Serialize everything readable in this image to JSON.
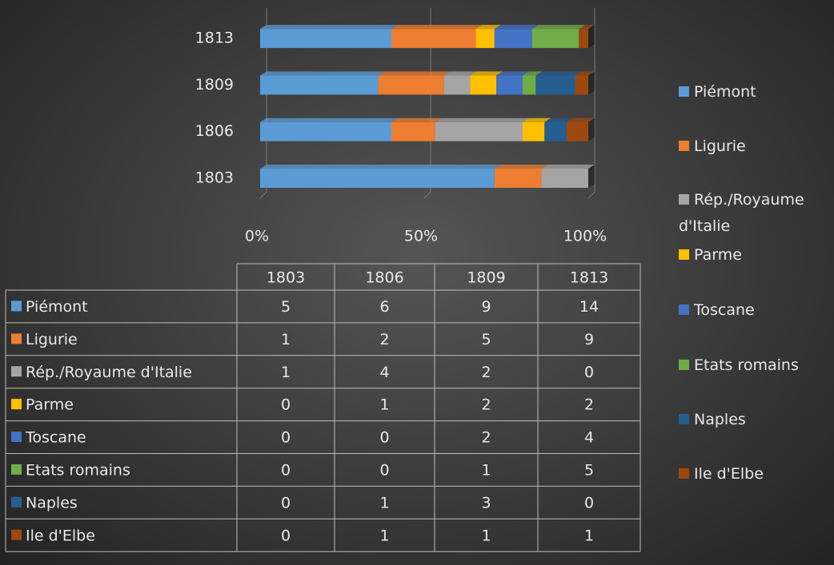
{
  "chart_data": {
    "type": "bar",
    "orientation": "horizontal",
    "stacking": "percent",
    "categories": [
      "1803",
      "1806",
      "1809",
      "1813"
    ],
    "series": [
      {
        "name": "Piémont",
        "color": "#5b9bd5",
        "values": [
          5,
          6,
          9,
          14
        ]
      },
      {
        "name": "Ligurie",
        "color": "#ed7d31",
        "values": [
          1,
          2,
          5,
          9
        ]
      },
      {
        "name": "Rép./Royaume d'Italie",
        "color": "#a5a5a5",
        "values": [
          1,
          4,
          2,
          0
        ]
      },
      {
        "name": "Parme",
        "color": "#ffc000",
        "values": [
          0,
          1,
          2,
          2
        ]
      },
      {
        "name": "Toscane",
        "color": "#4472c4",
        "values": [
          0,
          0,
          2,
          4
        ]
      },
      {
        "name": "Etats romains",
        "color": "#70ad47",
        "values": [
          0,
          0,
          1,
          5
        ]
      },
      {
        "name": "Naples",
        "color": "#255e91",
        "values": [
          0,
          1,
          3,
          0
        ]
      },
      {
        "name": "Ile d'Elbe",
        "color": "#9e480e",
        "values": [
          0,
          1,
          1,
          1
        ]
      }
    ],
    "xlim": [
      0,
      100
    ],
    "xticks": [
      {
        "value": 0,
        "label": "0%"
      },
      {
        "value": 50,
        "label": "50%"
      },
      {
        "value": 100,
        "label": "100%"
      }
    ],
    "grid": true,
    "legend": "right",
    "data_table": true
  }
}
